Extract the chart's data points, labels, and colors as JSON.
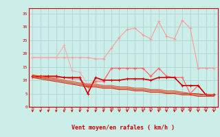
{
  "title": "Vent moyen/en rafales ( km/h )",
  "x": [
    0,
    1,
    2,
    3,
    4,
    5,
    6,
    7,
    8,
    9,
    10,
    11,
    12,
    13,
    14,
    15,
    16,
    17,
    18,
    19,
    20,
    21,
    22,
    23
  ],
  "background_color": "#cceee8",
  "grid_color": "#aad4ce",
  "lines": [
    {
      "label": "line1_pink_upper",
      "color": "#ff9999",
      "linewidth": 0.8,
      "marker": "+",
      "markersize": 3,
      "values": [
        18.5,
        18.5,
        18.5,
        18.5,
        18.5,
        18.5,
        18.5,
        18.5,
        18.0,
        18.0,
        22.0,
        26.0,
        29.0,
        29.5,
        27.0,
        25.5,
        32.0,
        26.5,
        25.5,
        32.5,
        29.5,
        14.5,
        14.5,
        14.5
      ]
    },
    {
      "label": "line2_light_pink",
      "color": "#ffaaaa",
      "linewidth": 0.8,
      "marker": "+",
      "markersize": 3,
      "values": [
        18.5,
        18.5,
        18.5,
        18.5,
        23.0,
        13.5,
        13.0,
        8.5,
        10.0,
        10.0,
        14.5,
        14.5,
        14.5,
        14.5,
        14.5,
        11.5,
        14.5,
        11.5,
        11.0,
        11.0,
        5.0,
        8.0,
        4.5,
        4.5
      ]
    },
    {
      "label": "line3_medium_red",
      "color": "#ff6666",
      "linewidth": 0.8,
      "marker": "+",
      "markersize": 3,
      "values": [
        11.0,
        11.0,
        11.0,
        11.0,
        11.0,
        10.5,
        10.5,
        7.5,
        9.5,
        9.5,
        14.5,
        14.5,
        14.5,
        14.5,
        14.5,
        11.5,
        14.5,
        11.5,
        11.0,
        11.0,
        5.0,
        8.0,
        4.5,
        4.5
      ]
    },
    {
      "label": "line4_dark_red_flat",
      "color": "#cc0000",
      "linewidth": 1.2,
      "marker": "+",
      "markersize": 3,
      "values": [
        11.5,
        11.5,
        11.5,
        11.5,
        11.0,
        11.0,
        11.0,
        5.0,
        11.0,
        10.0,
        10.0,
        10.0,
        10.5,
        10.5,
        10.5,
        10.0,
        11.0,
        11.0,
        11.0,
        8.0,
        8.0,
        8.0,
        4.5,
        4.5
      ]
    },
    {
      "label": "line5_red_decline1",
      "color": "#cc2200",
      "linewidth": 0.8,
      "marker": null,
      "markersize": 0,
      "values": [
        11.0,
        10.5,
        10.0,
        9.5,
        9.0,
        8.5,
        8.0,
        7.5,
        7.5,
        7.0,
        7.0,
        6.5,
        6.5,
        6.0,
        6.0,
        5.5,
        5.5,
        5.0,
        5.0,
        4.5,
        4.5,
        4.0,
        4.0,
        4.0
      ]
    },
    {
      "label": "line6_red_decline2",
      "color": "#dd3311",
      "linewidth": 0.8,
      "marker": null,
      "markersize": 0,
      "values": [
        11.5,
        11.0,
        10.5,
        10.0,
        9.5,
        9.0,
        8.5,
        8.0,
        8.0,
        7.5,
        7.5,
        7.0,
        7.0,
        6.5,
        6.5,
        6.0,
        6.0,
        5.5,
        5.5,
        5.0,
        5.0,
        4.5,
        4.5,
        4.0
      ]
    },
    {
      "label": "line7_red_decline3",
      "color": "#ee4422",
      "linewidth": 0.8,
      "marker": null,
      "markersize": 0,
      "values": [
        12.0,
        11.5,
        11.0,
        10.5,
        10.0,
        9.5,
        9.0,
        8.5,
        8.5,
        8.0,
        8.0,
        7.5,
        7.5,
        7.0,
        7.0,
        6.5,
        6.5,
        6.0,
        6.0,
        5.5,
        5.0,
        5.0,
        4.5,
        4.5
      ]
    }
  ],
  "ylim": [
    0,
    37
  ],
  "yticks": [
    0,
    5,
    10,
    15,
    20,
    25,
    30,
    35
  ],
  "xlim": [
    -0.5,
    23.5
  ],
  "xticks": [
    0,
    1,
    2,
    3,
    4,
    5,
    6,
    7,
    8,
    9,
    10,
    11,
    12,
    13,
    14,
    15,
    16,
    17,
    18,
    19,
    20,
    21,
    22,
    23
  ]
}
